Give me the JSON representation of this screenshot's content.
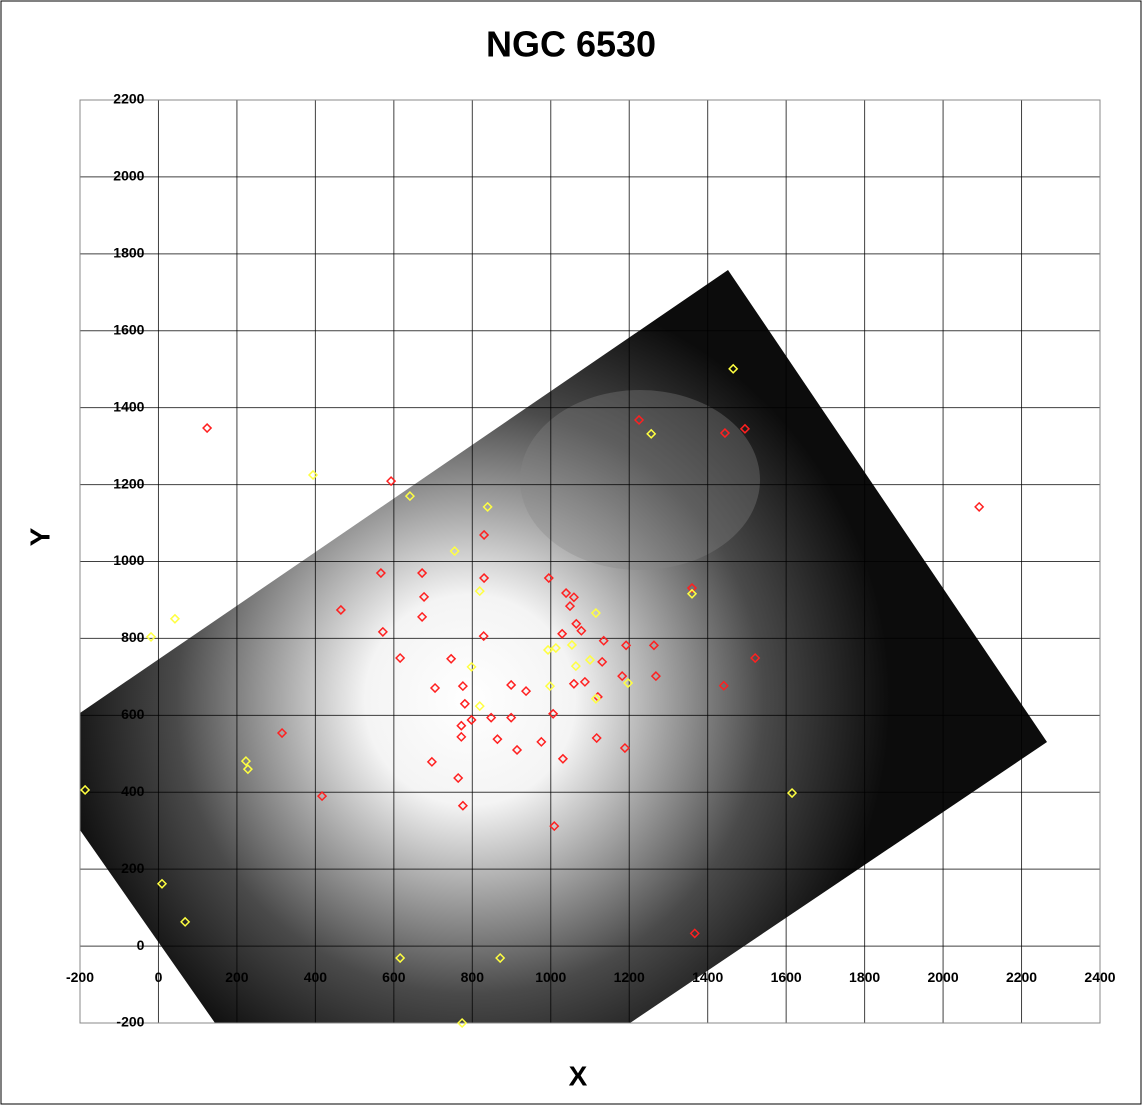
{
  "chart_data": {
    "type": "scatter",
    "title": "NGC 6530",
    "x_label": "X",
    "y_label": "Y",
    "xlim": [
      -200,
      2400
    ],
    "ylim": [
      -200,
      2200
    ],
    "xticks": [
      -200,
      0,
      200,
      400,
      600,
      800,
      1000,
      1200,
      1400,
      1600,
      1800,
      2000,
      2200,
      2400
    ],
    "yticks": [
      -200,
      0,
      200,
      400,
      600,
      800,
      1000,
      1200,
      1400,
      1600,
      1800,
      2000,
      2200
    ],
    "grid": true,
    "series": [
      {
        "color": "#ff2020",
        "x": [
          124,
          593,
          830,
          567,
          672,
          465,
          677,
          830,
          572,
          672,
          995,
          1039,
          1065,
          1078,
          1029,
          1135,
          1059,
          1049,
          616,
          746,
          829,
          705,
          781,
          798,
          772,
          772,
          899,
          937,
          1006,
          899,
          848,
          864,
          914,
          976,
          1031,
          1059,
          1087,
          1120,
          1117,
          1131,
          1182,
          1192,
          1263,
          1268,
          1189,
          697,
          764,
          776,
          1009,
          315,
          417,
          1225,
          1444,
          1495,
          1521,
          1441,
          1367,
          2092,
          1360,
          776
        ],
        "values": [
          1347,
          1209,
          1069,
          970,
          970,
          874,
          908,
          957,
          817,
          856,
          957,
          918,
          838,
          820,
          812,
          794,
          907,
          884,
          749,
          747,
          806,
          671,
          630,
          588,
          573,
          544,
          679,
          663,
          604,
          594,
          594,
          538,
          510,
          531,
          487,
          682,
          687,
          648,
          541,
          739,
          702,
          782,
          782,
          702,
          515,
          479,
          437,
          365,
          312,
          554,
          390,
          1368,
          1334,
          1345,
          749,
          677,
          33,
          1142,
          931,
          676
        ]
      },
      {
        "color": "#ffff40",
        "x": [
          394,
          641,
          839,
          755,
          819,
          42,
          -19,
          1360,
          993,
          1013,
          1054,
          1064,
          1100,
          1115,
          998,
          1197,
          1115,
          819,
          798,
          1256,
          1465,
          223,
          228,
          -187,
          9,
          68,
          616,
          871,
          774,
          1615
        ],
        "values": [
          1225,
          1170,
          1142,
          1027,
          923,
          851,
          804,
          916,
          770,
          775,
          783,
          728,
          744,
          643,
          676,
          684,
          866,
          624,
          726,
          1332,
          1501,
          481,
          460,
          406,
          162,
          63,
          -31,
          -31,
          -200,
          398
        ]
      }
    ]
  }
}
